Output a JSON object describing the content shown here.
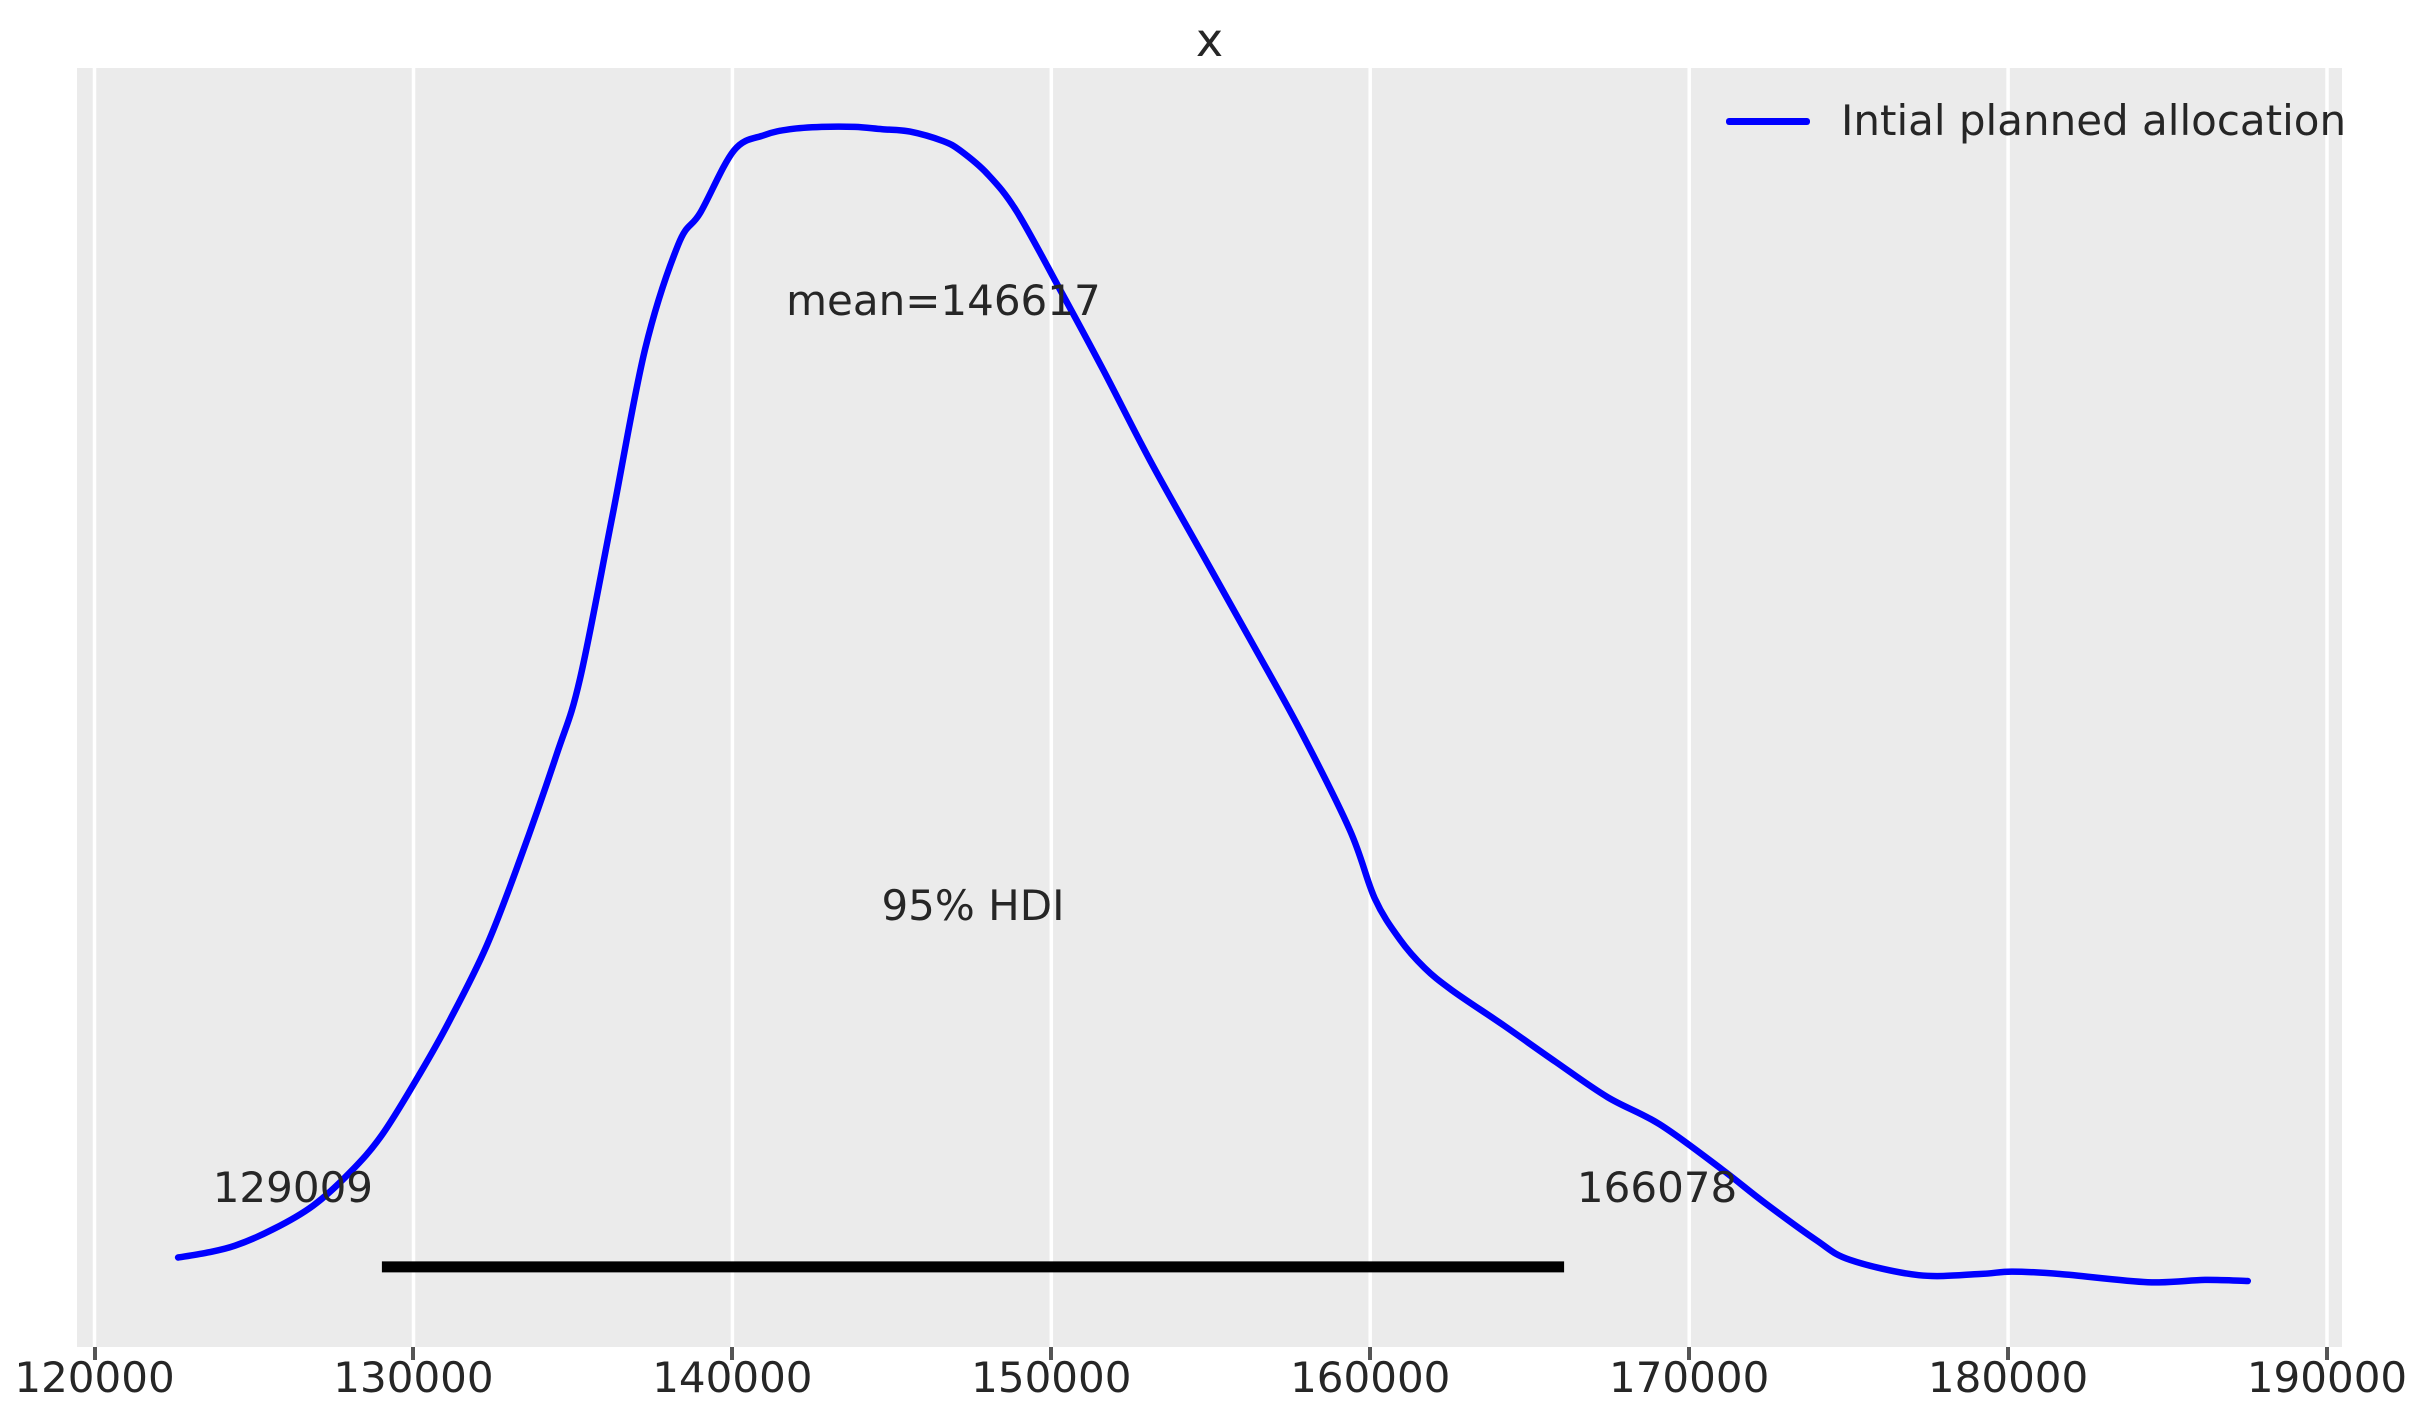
{
  "title": "x",
  "legend": {
    "label": "Intial planned allocation"
  },
  "annotations": {
    "mean_label": "mean=146617",
    "hdi_label": "95% HDI",
    "hdi_low_label": "129009",
    "hdi_high_label": "166078"
  },
  "x_axis": {
    "ticks": [
      120000,
      130000,
      140000,
      150000,
      160000,
      170000,
      180000,
      190000
    ],
    "tick_labels": [
      "120000",
      "130000",
      "140000",
      "150000",
      "160000",
      "170000",
      "180000",
      "190000"
    ]
  },
  "colors": {
    "figure_bg": "#ffffff",
    "plot_bg": "#ebebeb",
    "grid": "#ffffff",
    "curve": "#0000ff",
    "hdi_bar": "#000000",
    "text": "#262626",
    "tick_mark": "#555555"
  },
  "chart_data": {
    "type": "line",
    "title": "x",
    "xlabel": "",
    "ylabel": "",
    "xlim": [
      119450,
      190470
    ],
    "ylim": [
      -0.036,
      1.05
    ],
    "grid": "vertical white gridlines on gray panel (ggplot style)",
    "legend_position": "upper-right",
    "mean": 146617,
    "hdi": {
      "prob_label": "95% HDI",
      "low": 129009,
      "high": 166078,
      "bar_density_y": 0.032
    },
    "series": [
      {
        "name": "Intial planned allocation",
        "color": "#0000ff",
        "points": [
          [
            122620,
            0.04
          ],
          [
            123500,
            0.044
          ],
          [
            124400,
            0.05
          ],
          [
            125600,
            0.064
          ],
          [
            126850,
            0.084
          ],
          [
            128000,
            0.112
          ],
          [
            129009,
            0.144
          ],
          [
            130200,
            0.196
          ],
          [
            131150,
            0.242
          ],
          [
            132300,
            0.305
          ],
          [
            133340,
            0.378
          ],
          [
            134500,
            0.468
          ],
          [
            135220,
            0.531
          ],
          [
            136240,
            0.67
          ],
          [
            137260,
            0.811
          ],
          [
            138300,
            0.9
          ],
          [
            138990,
            0.927
          ],
          [
            140050,
            0.98
          ],
          [
            141000,
            0.993
          ],
          [
            141810,
            0.998
          ],
          [
            142800,
            1.0
          ],
          [
            143840,
            1.0
          ],
          [
            144700,
            0.998
          ],
          [
            145570,
            0.996
          ],
          [
            146600,
            0.988
          ],
          [
            147140,
            0.98
          ],
          [
            148000,
            0.96
          ],
          [
            148920,
            0.928
          ],
          [
            150270,
            0.862
          ],
          [
            151620,
            0.794
          ],
          [
            153090,
            0.717
          ],
          [
            154660,
            0.641
          ],
          [
            156230,
            0.565
          ],
          [
            157800,
            0.488
          ],
          [
            159360,
            0.403
          ],
          [
            160140,
            0.345
          ],
          [
            160930,
            0.31
          ],
          [
            161700,
            0.286
          ],
          [
            162560,
            0.267
          ],
          [
            164190,
            0.237
          ],
          [
            165820,
            0.206
          ],
          [
            167450,
            0.176
          ],
          [
            169080,
            0.153
          ],
          [
            171020,
            0.115
          ],
          [
            172340,
            0.087
          ],
          [
            173970,
            0.055
          ],
          [
            175040,
            0.038
          ],
          [
            177200,
            0.025
          ],
          [
            179110,
            0.026
          ],
          [
            180120,
            0.028
          ],
          [
            181620,
            0.026
          ],
          [
            184380,
            0.019
          ],
          [
            186170,
            0.021
          ],
          [
            187515,
            0.02
          ]
        ]
      }
    ]
  }
}
